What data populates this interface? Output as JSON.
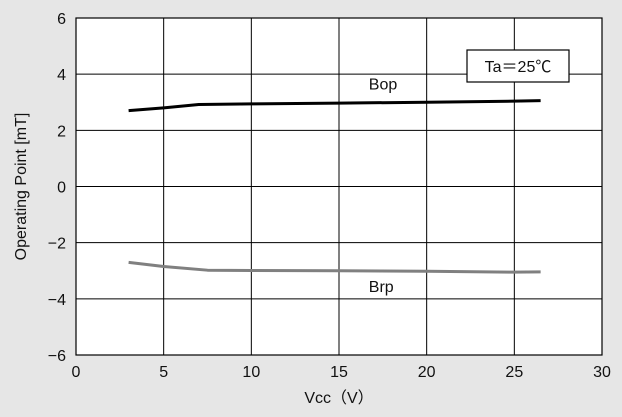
{
  "colors": {
    "background": "#e6e6e6",
    "plot_background": "#ffffff",
    "grid": "#000000",
    "bop_line": "#000000",
    "brp_line": "#808080"
  },
  "chart_data": {
    "type": "line",
    "title": "",
    "xlabel": "Vcc（V）",
    "ylabel": "Operating Point [mT]",
    "xlim": [
      0,
      30
    ],
    "ylim": [
      -6,
      6
    ],
    "x_ticks": [
      0,
      5,
      10,
      15,
      20,
      25,
      30
    ],
    "y_ticks": [
      -6,
      -4,
      -2,
      0,
      2,
      4,
      6
    ],
    "x_tick_labels": [
      "0",
      "5",
      "10",
      "15",
      "20",
      "25",
      "30"
    ],
    "y_tick_labels": [
      "−6",
      "−4",
      "−2",
      "0",
      "2",
      "4",
      "6"
    ],
    "grid": true,
    "annotation": "Ta＝25℃",
    "series": [
      {
        "name": "Bop",
        "color": "#000000",
        "x": [
          3,
          5,
          7,
          10,
          15,
          20,
          25,
          26.5
        ],
        "y": [
          2.7,
          2.8,
          2.92,
          2.94,
          2.97,
          3.0,
          3.04,
          3.06
        ]
      },
      {
        "name": "Brp",
        "color": "#808080",
        "x": [
          3,
          5,
          7.5,
          10,
          15,
          20,
          25,
          26.5
        ],
        "y": [
          -2.7,
          -2.85,
          -2.98,
          -2.99,
          -3.0,
          -3.02,
          -3.05,
          -3.04
        ]
      }
    ]
  }
}
